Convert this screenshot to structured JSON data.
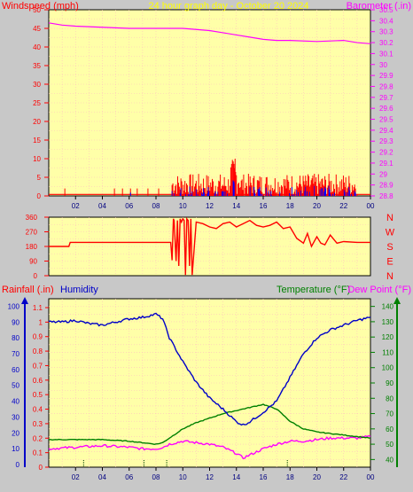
{
  "header": {
    "left_label": "Windspeed (mph)",
    "center_label": "24 hour graph day - October 20 2024",
    "right_label": "Barometer (.in)"
  },
  "bottom_header": {
    "rain_label": "Rainfall (.in)",
    "humidity_label": "Humidity",
    "temp_label": "Temperature (°F)",
    "dew_label": "Dew Point (°F)"
  },
  "colors": {
    "background": "#c8c8c8",
    "plot_bg": "#ffffa8",
    "grid": "#ffc0c0",
    "wind": "#ff0000",
    "gust": "#0000ff",
    "barometer": "#ff00ff",
    "direction": "#ff0000",
    "humidity": "#0000c8",
    "temperature": "#008000",
    "dewpoint": "#ff00ff",
    "rain_axis": "#0000c8",
    "center_label": "#ffff00"
  },
  "chart_data": [
    {
      "type": "line",
      "name": "wind-barometer",
      "x_ticks": [
        "02",
        "04",
        "06",
        "08",
        "10",
        "12",
        "14",
        "16",
        "18",
        "20",
        "22",
        "00"
      ],
      "wind_ticks": [
        "50",
        "45",
        "40",
        "35",
        "30",
        "25",
        "20",
        "15",
        "10",
        "5",
        "0"
      ],
      "baro_ticks": [
        "30.5",
        "30.4",
        "30.3",
        "30.2",
        "30.1",
        "30",
        "29.9",
        "29.8",
        "29.7",
        "29.6",
        "29.5",
        "29.4",
        "29.3",
        "29.2",
        "29.1",
        "29",
        "28.9",
        "28.8"
      ],
      "wind_range": [
        0,
        50
      ],
      "baro_range": [
        28.8,
        30.5
      ],
      "barometer": {
        "hours": [
          0,
          1,
          2,
          4,
          6,
          8,
          10,
          11,
          12,
          13,
          14,
          15,
          16,
          17,
          18,
          20,
          22,
          23,
          24
        ],
        "values": [
          30.38,
          30.36,
          30.35,
          30.34,
          30.33,
          30.33,
          30.33,
          30.32,
          30.31,
          30.29,
          30.27,
          30.25,
          30.23,
          30.22,
          30.22,
          30.21,
          30.22,
          30.2,
          30.19
        ]
      }
    },
    {
      "type": "line",
      "name": "wind-direction",
      "y_ticks": [
        "360",
        "270",
        "180",
        "90",
        "0"
      ],
      "compass": [
        "N",
        "W",
        "S",
        "E",
        "N"
      ],
      "y_range": [
        0,
        360
      ],
      "hours": [
        0,
        1.5,
        1.6,
        9.1,
        9.2,
        9.3,
        9.35,
        9.5,
        9.6,
        9.7,
        9.8,
        9.9,
        10.0,
        10.1,
        10.2,
        10.3,
        10.4,
        10.5,
        10.6,
        10.7,
        11.0,
        11.5,
        12.0,
        12.5,
        13.0,
        13.5,
        14.0,
        14.5,
        15.0,
        15.5,
        16.0,
        16.5,
        17.0,
        17.5,
        18.0,
        18.5,
        19.0,
        19.3,
        19.6,
        20.0,
        20.3,
        20.6,
        21.0,
        21.5,
        22.0,
        23.0,
        24.0
      ],
      "values": [
        180,
        180,
        205,
        205,
        95,
        350,
        340,
        90,
        340,
        60,
        350,
        330,
        350,
        340,
        5,
        350,
        340,
        60,
        350,
        5,
        330,
        320,
        300,
        290,
        320,
        330,
        300,
        320,
        340,
        310,
        300,
        310,
        330,
        290,
        300,
        230,
        200,
        260,
        180,
        240,
        200,
        190,
        250,
        200,
        210,
        205,
        205
      ]
    },
    {
      "type": "line",
      "name": "humidity-temperature",
      "x_ticks": [
        "02",
        "04",
        "06",
        "08",
        "10",
        "12",
        "14",
        "16",
        "18",
        "20",
        "22",
        "00"
      ],
      "humidity_ticks": [
        "100",
        "90",
        "80",
        "70",
        "60",
        "50",
        "40",
        "30",
        "20",
        "10",
        "0"
      ],
      "rain_ticks": [
        "1.1",
        "1",
        "0.9",
        "0.8",
        "0.7",
        "0.6",
        "0.5",
        "0.4",
        "0.3",
        "0.2",
        "0.1",
        "0"
      ],
      "temp_ticks": [
        "140",
        "130",
        "120",
        "110",
        "100",
        "90",
        "80",
        "70",
        "60",
        "50",
        "40"
      ],
      "humidity_range": [
        0,
        100
      ],
      "temp_range": [
        35,
        145
      ],
      "humidity": {
        "hours": [
          0,
          1,
          2,
          3,
          4,
          5,
          6,
          7,
          7.5,
          8,
          8.5,
          9,
          10,
          11,
          12,
          13,
          14,
          14.5,
          15,
          16,
          17,
          18,
          19,
          20,
          21,
          22,
          23,
          24
        ],
        "values": [
          90,
          90,
          91,
          89,
          88,
          90,
          92,
          93,
          94,
          95,
          92,
          80,
          65,
          52,
          42,
          35,
          27,
          25,
          27,
          33,
          40,
          55,
          70,
          80,
          85,
          88,
          91,
          93
        ]
      },
      "temperature": {
        "hours": [
          0,
          2,
          4,
          6,
          7,
          8,
          8.5,
          9,
          10,
          11,
          12,
          13,
          14,
          15,
          16,
          17,
          18,
          19,
          20,
          21,
          22,
          23,
          24
        ],
        "values": [
          53,
          53,
          53,
          52,
          51,
          50,
          51,
          54,
          60,
          64,
          67,
          70,
          72,
          74,
          76,
          73,
          65,
          60,
          58,
          57,
          56,
          55,
          54
        ]
      },
      "dewpoint": {
        "hours": [
          0,
          2,
          4,
          6,
          7,
          8,
          8.5,
          9,
          10,
          11,
          12,
          13,
          14,
          14.5,
          15,
          16,
          17,
          18,
          19,
          20,
          21,
          22,
          23,
          24
        ],
        "values": [
          47,
          48,
          49,
          48,
          47,
          47,
          48,
          50,
          52,
          51,
          50,
          48,
          44,
          41,
          43,
          47,
          50,
          52,
          52,
          53,
          54,
          54,
          54,
          55
        ]
      }
    }
  ]
}
